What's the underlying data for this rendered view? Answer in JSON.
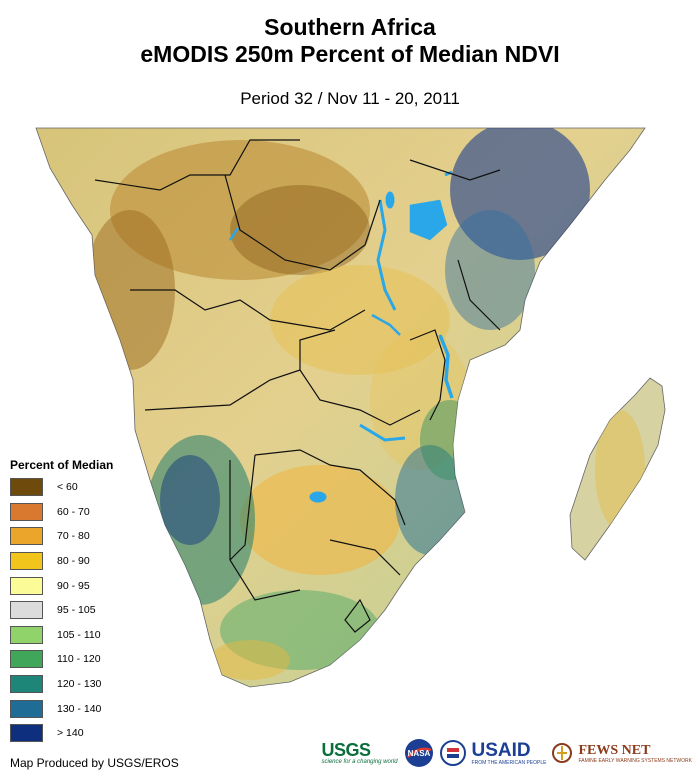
{
  "title": {
    "line1": "Southern Africa",
    "line2": "eMODIS 250m Percent of Median NDVI",
    "period": "Period 32 / Nov 11 - 20, 2011"
  },
  "legend": {
    "title": "Percent of Median",
    "items": [
      {
        "label": "< 60",
        "color": "#6e4a0c"
      },
      {
        "label": "60 - 70",
        "color": "#d97930"
      },
      {
        "label": "70 - 80",
        "color": "#eba52a"
      },
      {
        "label": "80 - 90",
        "color": "#f2c51c"
      },
      {
        "label": "90 - 95",
        "color": "#fbfb98"
      },
      {
        "label": "95 - 105",
        "color": "#dcdcdc"
      },
      {
        "label": "105 - 110",
        "color": "#8fd36a"
      },
      {
        "label": "110 - 120",
        "color": "#3fa65a"
      },
      {
        "label": "120 - 130",
        "color": "#1d8679"
      },
      {
        "label": "130 - 140",
        "color": "#1f6d97"
      },
      {
        "label": "> 140",
        "color": "#0e2f7e"
      }
    ]
  },
  "credit": "Map Produced by USGS/EROS",
  "logos": {
    "usgs": "USGS",
    "usgs_tagline": "science for a changing world",
    "nasa": "NASA",
    "usaid": "USAID",
    "usaid_tagline": "FROM THE AMERICAN PEOPLE",
    "fews": "FEWS NET",
    "fews_tagline": "FAMINE EARLY WARNING SYSTEMS NETWORK"
  },
  "colors": {
    "water": "#2aa7e8",
    "ocean": "#ffffff",
    "border": "#111111"
  }
}
